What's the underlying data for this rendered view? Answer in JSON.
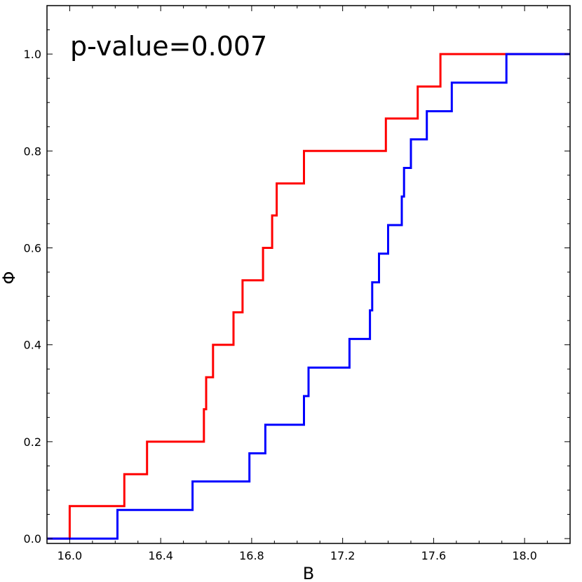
{
  "chart_data": {
    "type": "line",
    "step": true,
    "title": "",
    "xlabel": "B",
    "ylabel": "Φ",
    "xlim": [
      15.9,
      18.2
    ],
    "ylim": [
      -0.01,
      1.1
    ],
    "xticks": [
      16.0,
      16.4,
      16.8,
      17.2,
      17.6,
      18.0
    ],
    "xtick_labels": [
      "16.0",
      "16.4",
      "16.8",
      "17.2",
      "17.6",
      "18.0"
    ],
    "yticks": [
      0.0,
      0.2,
      0.4,
      0.6,
      0.8,
      1.0
    ],
    "ytick_labels": [
      "0.0",
      "0.2",
      "0.4",
      "0.6",
      "0.8",
      "1.0"
    ],
    "grid": false,
    "annotation": "p-value=0.007",
    "series": [
      {
        "name": "red",
        "color": "#ff0000",
        "x": [
          15.9,
          16.0,
          16.24,
          16.34,
          16.59,
          16.6,
          16.63,
          16.72,
          16.76,
          16.85,
          16.89,
          16.91,
          17.03,
          17.39,
          17.53,
          17.63,
          18.2
        ],
        "y": [
          0.0,
          0.067,
          0.133,
          0.2,
          0.267,
          0.333,
          0.4,
          0.467,
          0.533,
          0.6,
          0.667,
          0.733,
          0.8,
          0.867,
          0.933,
          1.0,
          1.0
        ]
      },
      {
        "name": "blue",
        "color": "#0000ff",
        "x": [
          15.9,
          16.21,
          16.54,
          16.79,
          16.86,
          17.03,
          17.05,
          17.23,
          17.32,
          17.33,
          17.36,
          17.4,
          17.46,
          17.47,
          17.5,
          17.57,
          17.68,
          17.92,
          18.2
        ],
        "y": [
          0.0,
          0.059,
          0.118,
          0.176,
          0.235,
          0.294,
          0.353,
          0.412,
          0.471,
          0.529,
          0.588,
          0.647,
          0.706,
          0.765,
          0.824,
          0.882,
          0.941,
          1.0,
          1.0
        ]
      }
    ]
  }
}
